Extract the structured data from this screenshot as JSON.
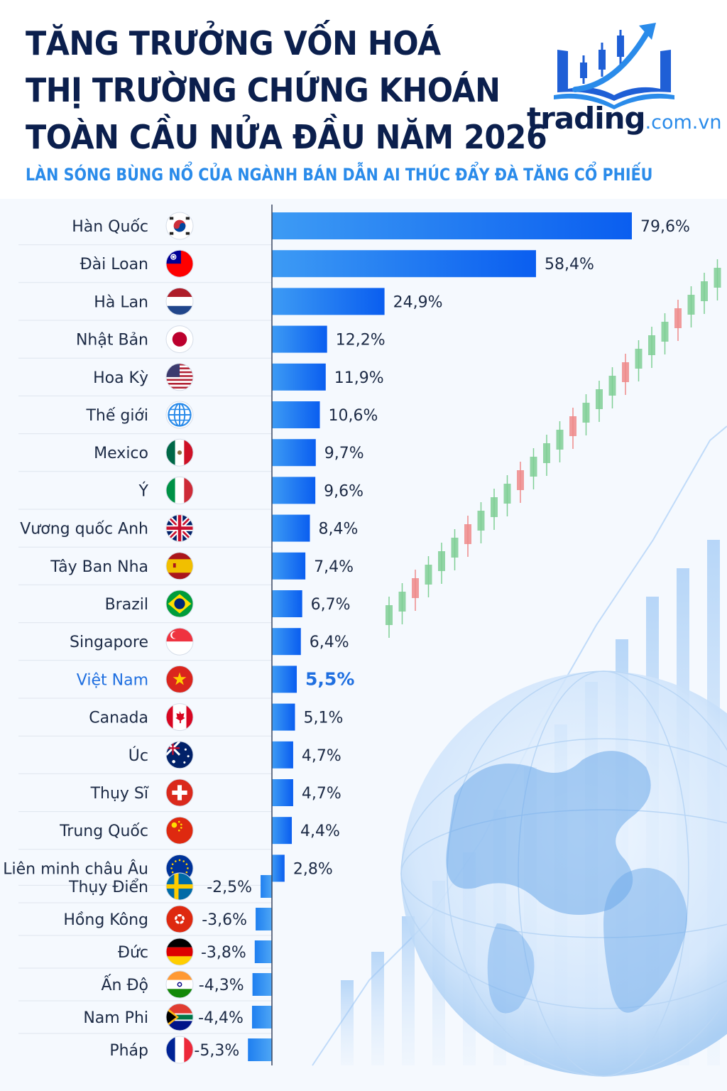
{
  "header": {
    "title_lines": [
      "TĂNG TRƯỞNG VỐN HOÁ",
      "THỊ TRƯỜNG CHỨNG KHOÁN",
      "TOÀN CẦU NỬA ĐẦU NĂM 2026"
    ],
    "subtitle": "LÀN SÓNG BÙNG NỔ CỦA NGÀNH BÁN DẪN AI THÚC ĐẨY ĐÀ TĂNG CỔ PHIẾU"
  },
  "logo": {
    "brand": "trading",
    "domain": ".com.vn",
    "icon": "book-candlestick-arrow-logo"
  },
  "colors": {
    "title": "#0b1f4d",
    "accent": "#2a8bea",
    "bar_top": "#0a5ef0",
    "bar_bottom": "#4ea6f5",
    "highlight": "#1f6fe0"
  },
  "chart_data": {
    "type": "bar",
    "orientation": "horizontal",
    "unit": "%",
    "highlight": "Việt Nam",
    "xlim": [
      -5.3,
      79.6
    ],
    "categories": [
      "Hàn Quốc",
      "Đài Loan",
      "Hà Lan",
      "Nhật Bản",
      "Hoa Kỳ",
      "Thế giới",
      "Mexico",
      "Ý",
      "Vương quốc Anh",
      "Tây Ban Nha",
      "Brazil",
      "Singapore",
      "Việt Nam",
      "Canada",
      "Úc",
      "Thụy Sĩ",
      "Trung Quốc",
      "Liên minh châu Âu",
      "Thụy Điển",
      "Hồng Kông",
      "Đức",
      "Ấn Độ",
      "Nam Phi",
      "Pháp"
    ],
    "values": [
      79.6,
      58.4,
      24.9,
      12.2,
      11.9,
      10.6,
      9.7,
      9.6,
      8.4,
      7.4,
      6.7,
      6.4,
      5.5,
      5.1,
      4.7,
      4.7,
      4.4,
      2.8,
      -2.5,
      -3.6,
      -3.8,
      -4.3,
      -4.4,
      -5.3
    ],
    "value_labels": [
      "79,6%",
      "58,4%",
      "24,9%",
      "12,2%",
      "11,9%",
      "10,6%",
      "9,7%",
      "9,6%",
      "8,4%",
      "7,4%",
      "6,7%",
      "6,4%",
      "5,5%",
      "5,1%",
      "4,7%",
      "4,7%",
      "4,4%",
      "2,8%",
      "-2,5%",
      "-3,6%",
      "-3,8%",
      "-4,3%",
      "-4,4%",
      "-5,3%"
    ],
    "flag_icons": [
      "south-korea-flag-icon",
      "taiwan-flag-icon",
      "netherlands-flag-icon",
      "japan-flag-icon",
      "usa-flag-icon",
      "globe-icon",
      "mexico-flag-icon",
      "italy-flag-icon",
      "uk-flag-icon",
      "spain-flag-icon",
      "brazil-flag-icon",
      "singapore-flag-icon",
      "vietnam-flag-icon",
      "canada-flag-icon",
      "australia-flag-icon",
      "switzerland-flag-icon",
      "china-flag-icon",
      "eu-flag-icon",
      "sweden-flag-icon",
      "hong-kong-flag-icon",
      "germany-flag-icon",
      "india-flag-icon",
      "south-africa-flag-icon",
      "france-flag-icon"
    ]
  }
}
